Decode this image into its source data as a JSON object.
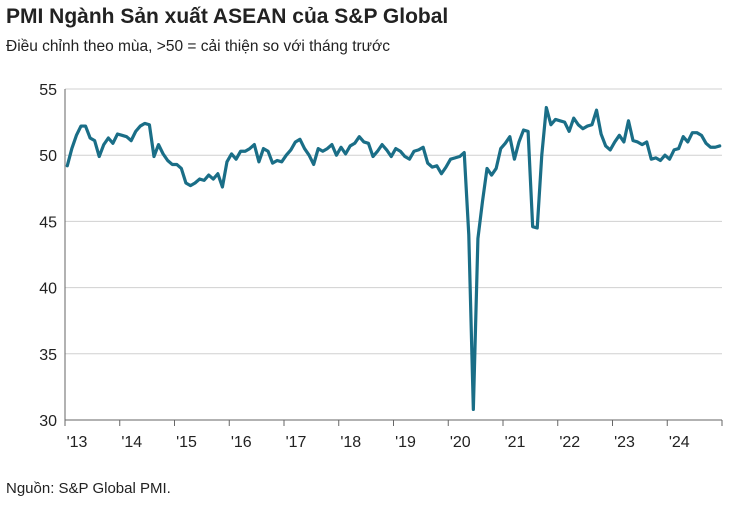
{
  "title": "PMI Ngành Sản xuất ASEAN của S&P Global",
  "subtitle": "Điều chỉnh theo mùa, >50 = cải thiện so với tháng trước",
  "source": "Nguồn: S&P Global PMI.",
  "colors": {
    "line": "#1a6e87",
    "grid": "#d0d0d0",
    "axis": "#666666"
  },
  "chart_data": {
    "type": "line",
    "title": "PMI Ngành Sản xuất ASEAN của S&P Global",
    "subtitle": "Điều chỉnh theo mùa, >50 = cải thiện so với tháng trước",
    "xlabel": "",
    "ylabel": "",
    "ylim": [
      30,
      55
    ],
    "yticks": [
      30,
      35,
      40,
      45,
      50,
      55
    ],
    "xticks": [
      "'13",
      "'14",
      "'15",
      "'16",
      "'17",
      "'18",
      "'19",
      "'20",
      "'21",
      "'22",
      "'23",
      "'24"
    ],
    "x_start": "2013-01",
    "x_end": "2024-12",
    "grid": true,
    "legend": "none",
    "series": [
      {
        "values": [
          49.2,
          50.5,
          51.5,
          52.2,
          52.2,
          51.3,
          51.1,
          49.9,
          50.8,
          51.3,
          50.9,
          51.6,
          51.5,
          51.4,
          51.1,
          51.8,
          52.2,
          52.4,
          52.3,
          49.9,
          50.8,
          50.1,
          49.6,
          49.3,
          49.3,
          49.0,
          47.9,
          47.7,
          47.9,
          48.2,
          48.1,
          48.5,
          48.2,
          48.6,
          47.6,
          49.5,
          50.1,
          49.7,
          50.3,
          50.3,
          50.5,
          50.8,
          49.5,
          50.5,
          50.3,
          49.4,
          49.6,
          49.5,
          50.0,
          50.4,
          51.0,
          51.2,
          50.5,
          50.0,
          49.3,
          50.5,
          50.3,
          50.5,
          50.8,
          50.0,
          50.6,
          50.1,
          50.7,
          50.9,
          51.4,
          51.0,
          50.9,
          49.9,
          50.3,
          50.8,
          50.4,
          49.9,
          50.5,
          50.3,
          49.9,
          49.7,
          50.3,
          50.4,
          50.6,
          49.4,
          49.1,
          49.2,
          48.6,
          49.1,
          49.7,
          49.8,
          49.9,
          50.2,
          44.0,
          30.8,
          43.7,
          46.5,
          49.0,
          48.5,
          49.0,
          50.5,
          50.9,
          51.4,
          49.7,
          51.0,
          51.9,
          51.8,
          44.6,
          44.5,
          50.0,
          53.6,
          52.3,
          52.7,
          52.6,
          52.5,
          51.8,
          52.8,
          52.3,
          52.0,
          52.2,
          52.3,
          53.4,
          51.6,
          50.7,
          50.4,
          51.0,
          51.5,
          51.0,
          52.6,
          51.1,
          51.0,
          50.8,
          51.0,
          49.7,
          49.8,
          49.6,
          50.0,
          49.7,
          50.4,
          50.5,
          51.4,
          51.0,
          51.7,
          51.7,
          51.5,
          50.9,
          50.6,
          50.6,
          50.7
        ]
      }
    ]
  }
}
